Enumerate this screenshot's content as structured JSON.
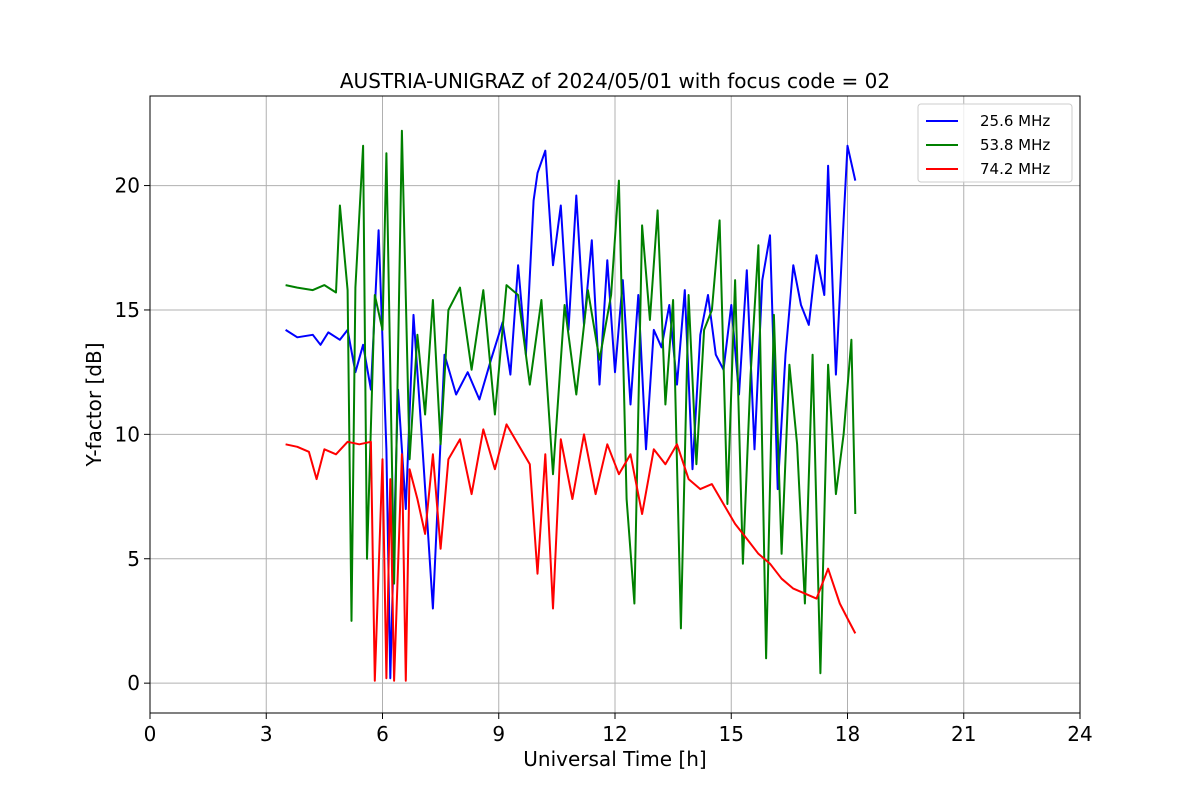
{
  "chart_data": {
    "type": "line",
    "title": "AUSTRIA-UNIGRAZ of 2024/05/01 with focus code = 02",
    "xlabel": "Universal Time [h]",
    "ylabel": "Y-factor [dB]",
    "xlim": [
      0,
      24
    ],
    "ylim": [
      -1.2,
      23.6
    ],
    "xticks": [
      0,
      3,
      6,
      9,
      12,
      15,
      18,
      21,
      24
    ],
    "yticks": [
      0,
      5,
      10,
      15,
      20
    ],
    "grid": true,
    "legend_position": "top-right",
    "series": [
      {
        "name": "25.6 MHz",
        "color": "#0000ff",
        "x": [
          3.5,
          3.8,
          4.2,
          4.4,
          4.6,
          4.9,
          5.1,
          5.3,
          5.5,
          5.7,
          5.9,
          6.1,
          6.2,
          6.4,
          6.6,
          6.8,
          7.0,
          7.3,
          7.6,
          7.9,
          8.2,
          8.5,
          8.8,
          9.1,
          9.3,
          9.5,
          9.7,
          9.9,
          10.0,
          10.2,
          10.4,
          10.6,
          10.8,
          11.0,
          11.2,
          11.4,
          11.6,
          11.8,
          12.0,
          12.2,
          12.4,
          12.6,
          12.8,
          13.0,
          13.2,
          13.4,
          13.6,
          13.8,
          14.0,
          14.2,
          14.4,
          14.6,
          14.8,
          15.0,
          15.2,
          15.4,
          15.6,
          15.8,
          16.0,
          16.2,
          16.4,
          16.6,
          16.8,
          17.0,
          17.2,
          17.4,
          17.5,
          17.7,
          17.9,
          18.0,
          18.2
        ],
        "y": [
          14.2,
          13.9,
          14.0,
          13.6,
          14.1,
          13.8,
          14.2,
          12.5,
          13.6,
          11.8,
          18.2,
          9.4,
          0.2,
          11.8,
          7.0,
          14.8,
          10.2,
          3.0,
          13.2,
          11.6,
          12.5,
          11.4,
          13.0,
          14.5,
          12.4,
          16.8,
          13.2,
          19.4,
          20.5,
          21.4,
          16.8,
          19.2,
          14.2,
          19.6,
          14.4,
          17.8,
          12.0,
          17.0,
          12.5,
          16.2,
          11.2,
          15.6,
          9.4,
          14.2,
          13.5,
          15.2,
          12.0,
          15.8,
          8.6,
          14.0,
          15.6,
          13.2,
          12.6,
          15.2,
          11.6,
          16.6,
          9.4,
          16.2,
          18.0,
          7.8,
          13.2,
          16.8,
          15.2,
          14.4,
          17.2,
          15.6,
          20.8,
          12.4,
          18.6,
          21.6,
          20.2
        ]
      },
      {
        "name": "53.8 MHz",
        "color": "#008000",
        "x": [
          3.5,
          3.8,
          4.2,
          4.5,
          4.8,
          4.9,
          5.1,
          5.2,
          5.3,
          5.5,
          5.6,
          5.8,
          6.0,
          6.1,
          6.3,
          6.5,
          6.7,
          6.9,
          7.1,
          7.3,
          7.5,
          7.7,
          8.0,
          8.3,
          8.6,
          8.9,
          9.2,
          9.5,
          9.8,
          10.1,
          10.4,
          10.7,
          11.0,
          11.3,
          11.6,
          11.9,
          12.1,
          12.3,
          12.5,
          12.7,
          12.9,
          13.1,
          13.3,
          13.5,
          13.7,
          13.9,
          14.1,
          14.3,
          14.5,
          14.7,
          14.9,
          15.1,
          15.3,
          15.5,
          15.7,
          15.9,
          16.1,
          16.3,
          16.5,
          16.7,
          16.9,
          17.1,
          17.3,
          17.5,
          17.7,
          17.9,
          18.1,
          18.2
        ],
        "y": [
          16.0,
          15.9,
          15.8,
          16.0,
          15.7,
          19.2,
          15.8,
          2.5,
          15.9,
          21.6,
          5.0,
          15.6,
          14.2,
          21.3,
          4.0,
          22.2,
          9.0,
          14.0,
          10.8,
          15.4,
          9.6,
          15.0,
          15.9,
          12.6,
          15.8,
          10.8,
          16.0,
          15.6,
          12.0,
          15.4,
          8.4,
          15.2,
          11.6,
          15.8,
          13.0,
          15.6,
          20.2,
          7.4,
          3.2,
          18.4,
          14.6,
          19.0,
          11.2,
          15.4,
          2.2,
          15.6,
          8.8,
          14.2,
          15.0,
          18.6,
          7.2,
          16.2,
          4.8,
          12.4,
          17.6,
          1.0,
          14.8,
          5.2,
          12.8,
          9.6,
          3.2,
          13.2,
          0.4,
          12.8,
          7.6,
          10.0,
          13.8,
          6.8
        ]
      },
      {
        "name": "74.2 MHz",
        "color": "#ff0000",
        "x": [
          3.5,
          3.8,
          4.1,
          4.3,
          4.5,
          4.8,
          5.1,
          5.4,
          5.7,
          5.8,
          6.0,
          6.1,
          6.2,
          6.3,
          6.5,
          6.6,
          6.7,
          6.9,
          7.1,
          7.3,
          7.5,
          7.7,
          8.0,
          8.3,
          8.6,
          8.9,
          9.2,
          9.5,
          9.8,
          10.0,
          10.2,
          10.4,
          10.6,
          10.9,
          11.2,
          11.5,
          11.8,
          12.1,
          12.4,
          12.7,
          13.0,
          13.3,
          13.6,
          13.9,
          14.2,
          14.5,
          14.8,
          15.1,
          15.4,
          15.7,
          16.0,
          16.3,
          16.6,
          16.9,
          17.2,
          17.5,
          17.8,
          18.0,
          18.2
        ],
        "y": [
          9.6,
          9.5,
          9.3,
          8.2,
          9.4,
          9.2,
          9.7,
          9.6,
          9.7,
          0.1,
          9.0,
          0.2,
          8.2,
          0.1,
          9.2,
          0.1,
          8.6,
          7.4,
          6.0,
          9.2,
          5.4,
          9.0,
          9.8,
          7.6,
          10.2,
          8.6,
          10.4,
          9.6,
          8.8,
          4.4,
          9.2,
          3.0,
          9.8,
          7.4,
          10.0,
          7.6,
          9.6,
          8.4,
          9.2,
          6.8,
          9.4,
          8.8,
          9.6,
          8.2,
          7.8,
          8.0,
          7.2,
          6.4,
          5.8,
          5.2,
          4.8,
          4.2,
          3.8,
          3.6,
          3.4,
          4.6,
          3.2,
          2.6,
          2.0
        ]
      }
    ]
  }
}
